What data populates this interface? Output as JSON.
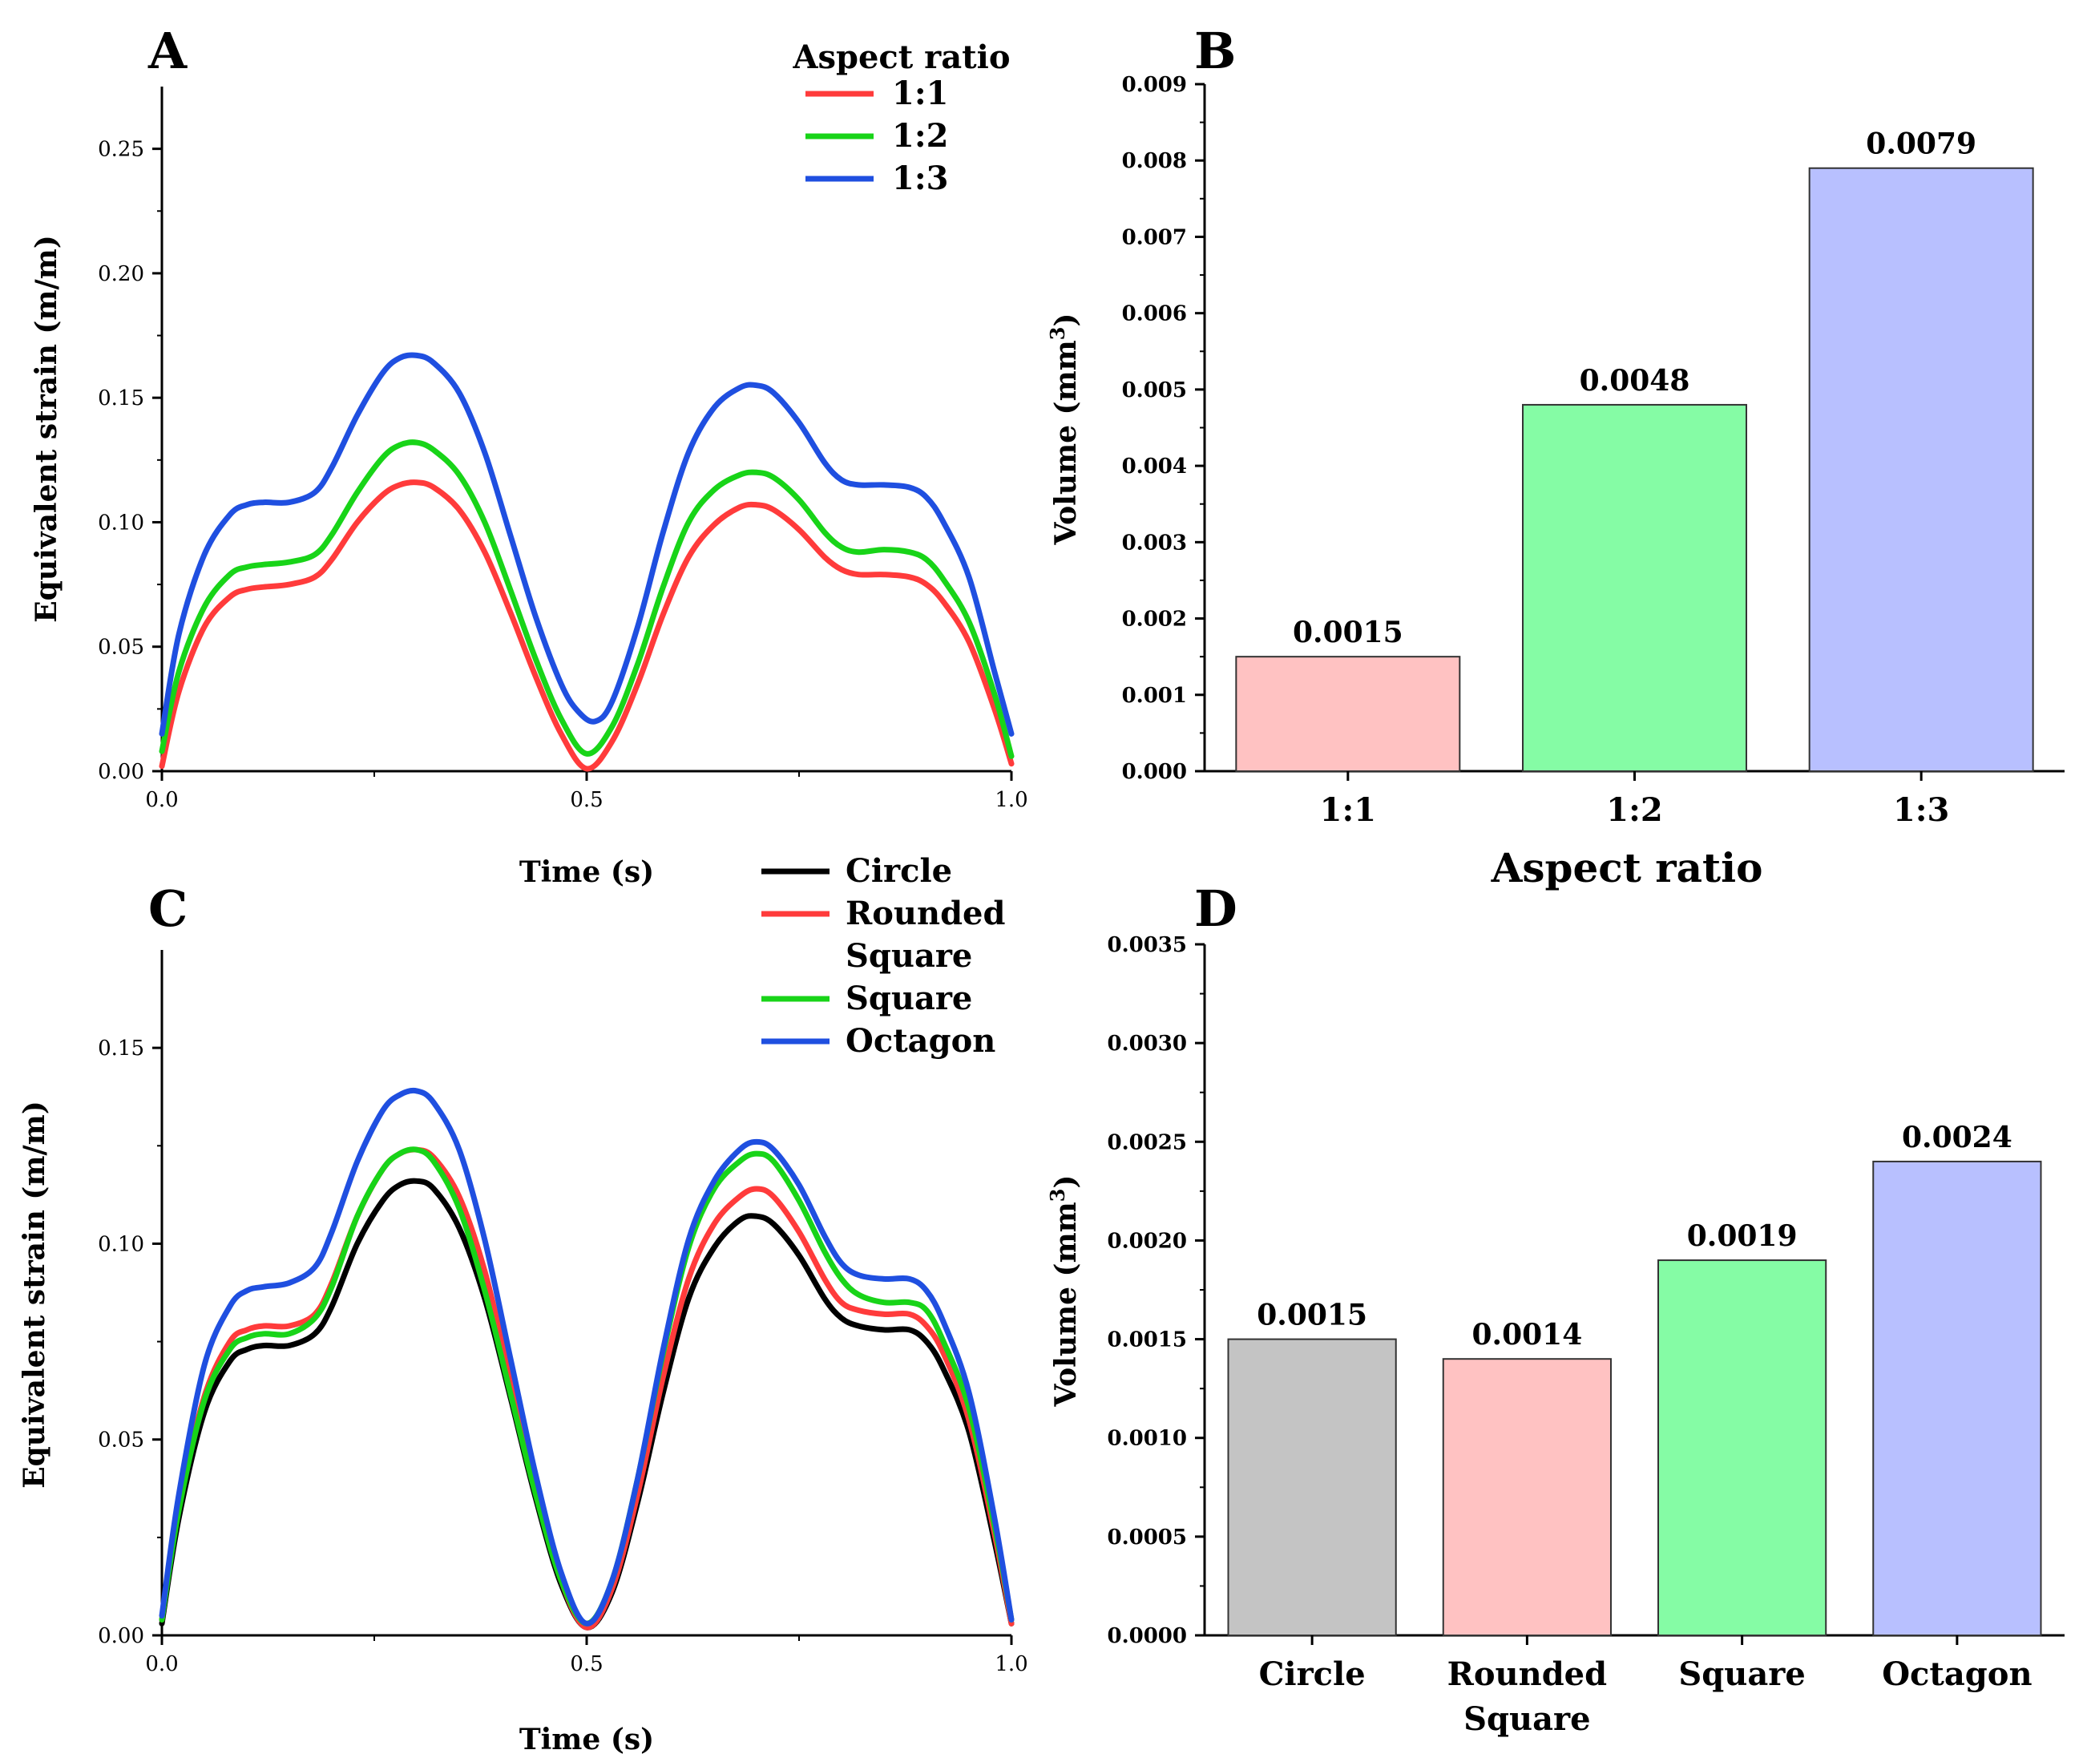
{
  "chart_data": [
    {
      "id": "A",
      "type": "line",
      "panel_label": "A",
      "xlabel": "Time (s)",
      "ylabel": "Equivalent strain (m/m)",
      "xlim": [
        0,
        1
      ],
      "ylim": [
        0,
        0.275
      ],
      "xticks": [
        0,
        0.5,
        1
      ],
      "xtick_labels": [
        "0.0",
        "0.5",
        "1.0"
      ],
      "yticks": [
        0,
        0.05,
        0.1,
        0.15,
        0.2,
        0.25
      ],
      "ytick_labels": [
        "0.00",
        "0.05",
        "0.10",
        "0.15",
        "0.20",
        "0.25"
      ],
      "legend_title": "Aspect ratio",
      "legend_position": "top-right",
      "series": [
        {
          "name": "1:1",
          "color": "#ff3b3b",
          "x": [
            0,
            0.02,
            0.05,
            0.08,
            0.1,
            0.12,
            0.15,
            0.18,
            0.2,
            0.23,
            0.26,
            0.28,
            0.3,
            0.32,
            0.35,
            0.38,
            0.41,
            0.44,
            0.47,
            0.5,
            0.53,
            0.56,
            0.59,
            0.62,
            0.65,
            0.68,
            0.7,
            0.72,
            0.75,
            0.78,
            0.8,
            0.82,
            0.85,
            0.88,
            0.9,
            0.92,
            0.95,
            0.98,
            1.0
          ],
          "y": [
            0.002,
            0.032,
            0.058,
            0.07,
            0.073,
            0.074,
            0.075,
            0.078,
            0.085,
            0.1,
            0.111,
            0.115,
            0.116,
            0.114,
            0.105,
            0.088,
            0.064,
            0.038,
            0.015,
            0.001,
            0.012,
            0.035,
            0.063,
            0.086,
            0.099,
            0.106,
            0.107,
            0.105,
            0.097,
            0.086,
            0.081,
            0.079,
            0.079,
            0.078,
            0.075,
            0.068,
            0.052,
            0.025,
            0.003
          ]
        },
        {
          "name": "1:2",
          "color": "#18d418",
          "x": [
            0,
            0.02,
            0.05,
            0.08,
            0.1,
            0.12,
            0.15,
            0.18,
            0.2,
            0.23,
            0.26,
            0.28,
            0.3,
            0.32,
            0.35,
            0.38,
            0.41,
            0.44,
            0.47,
            0.5,
            0.53,
            0.56,
            0.59,
            0.62,
            0.65,
            0.68,
            0.7,
            0.72,
            0.75,
            0.78,
            0.8,
            0.82,
            0.85,
            0.88,
            0.9,
            0.92,
            0.95,
            0.98,
            1.0
          ],
          "y": [
            0.008,
            0.04,
            0.066,
            0.079,
            0.082,
            0.083,
            0.084,
            0.087,
            0.095,
            0.112,
            0.126,
            0.131,
            0.132,
            0.129,
            0.119,
            0.1,
            0.073,
            0.045,
            0.021,
            0.007,
            0.018,
            0.043,
            0.074,
            0.1,
            0.113,
            0.119,
            0.12,
            0.118,
            0.109,
            0.096,
            0.09,
            0.088,
            0.089,
            0.088,
            0.085,
            0.077,
            0.06,
            0.031,
            0.006
          ]
        },
        {
          "name": "1:3",
          "color": "#1f4fe0",
          "x": [
            0,
            0.02,
            0.05,
            0.08,
            0.1,
            0.12,
            0.15,
            0.18,
            0.2,
            0.23,
            0.26,
            0.28,
            0.3,
            0.32,
            0.35,
            0.38,
            0.41,
            0.44,
            0.47,
            0.49,
            0.51,
            0.53,
            0.56,
            0.59,
            0.62,
            0.65,
            0.68,
            0.7,
            0.72,
            0.75,
            0.78,
            0.8,
            0.82,
            0.85,
            0.88,
            0.9,
            0.92,
            0.95,
            0.98,
            1.0
          ],
          "y": [
            0.015,
            0.055,
            0.087,
            0.103,
            0.107,
            0.108,
            0.108,
            0.112,
            0.122,
            0.143,
            0.16,
            0.166,
            0.167,
            0.164,
            0.152,
            0.128,
            0.095,
            0.062,
            0.035,
            0.024,
            0.02,
            0.028,
            0.058,
            0.096,
            0.128,
            0.146,
            0.154,
            0.155,
            0.152,
            0.14,
            0.124,
            0.117,
            0.115,
            0.115,
            0.114,
            0.11,
            0.1,
            0.078,
            0.04,
            0.015
          ]
        }
      ]
    },
    {
      "id": "B",
      "type": "bar",
      "panel_label": "B",
      "xlabel": "Aspect ratio",
      "ylabel": "Volume (mm",
      "ylabel_sup": "3",
      "ylabel_end": ")",
      "ylim": [
        0,
        0.009
      ],
      "yticks": [
        0,
        0.001,
        0.002,
        0.003,
        0.004,
        0.005,
        0.006,
        0.007,
        0.008,
        0.009
      ],
      "ytick_labels": [
        "0.000",
        "0.001",
        "0.002",
        "0.003",
        "0.004",
        "0.005",
        "0.006",
        "0.007",
        "0.008",
        "0.009"
      ],
      "categories": [
        "1:1",
        "1:2",
        "1:3"
      ],
      "values": [
        0.0015,
        0.0048,
        0.0079
      ],
      "value_labels": [
        "0.0015",
        "0.0048",
        "0.0079"
      ],
      "bar_colors": [
        "#ffc2c2",
        "#85fca5",
        "#b8c0ff"
      ]
    },
    {
      "id": "C",
      "type": "line",
      "panel_label": "C",
      "xlabel": "Time (s)",
      "ylabel": "Equivalent strain (m/m)",
      "xlim": [
        0,
        1
      ],
      "ylim": [
        0,
        0.175
      ],
      "xticks": [
        0,
        0.5,
        1
      ],
      "xtick_labels": [
        "0.0",
        "0.5",
        "1.0"
      ],
      "yticks": [
        0,
        0.05,
        0.1,
        0.15
      ],
      "ytick_labels": [
        "0.00",
        "0.05",
        "0.10",
        "0.15"
      ],
      "legend_position": "top-right",
      "series": [
        {
          "name": "Circle",
          "color": "#000000",
          "x": [
            0,
            0.02,
            0.05,
            0.08,
            0.1,
            0.12,
            0.15,
            0.18,
            0.2,
            0.23,
            0.26,
            0.28,
            0.3,
            0.32,
            0.35,
            0.38,
            0.41,
            0.44,
            0.47,
            0.5,
            0.53,
            0.56,
            0.59,
            0.62,
            0.65,
            0.68,
            0.7,
            0.72,
            0.75,
            0.78,
            0.8,
            0.82,
            0.85,
            0.88,
            0.9,
            0.92,
            0.95,
            0.98,
            1.0
          ],
          "y": [
            0.003,
            0.03,
            0.057,
            0.07,
            0.073,
            0.074,
            0.074,
            0.077,
            0.084,
            0.1,
            0.111,
            0.115,
            0.116,
            0.114,
            0.104,
            0.086,
            0.061,
            0.035,
            0.013,
            0.002,
            0.011,
            0.034,
            0.062,
            0.086,
            0.099,
            0.106,
            0.107,
            0.105,
            0.097,
            0.086,
            0.081,
            0.079,
            0.078,
            0.078,
            0.075,
            0.068,
            0.052,
            0.024,
            0.003
          ]
        },
        {
          "name": "Rounded Square",
          "color": "#ff3b3b",
          "x": [
            0,
            0.02,
            0.05,
            0.08,
            0.1,
            0.12,
            0.15,
            0.18,
            0.2,
            0.23,
            0.26,
            0.28,
            0.3,
            0.32,
            0.35,
            0.38,
            0.41,
            0.44,
            0.47,
            0.5,
            0.53,
            0.56,
            0.59,
            0.62,
            0.65,
            0.68,
            0.7,
            0.72,
            0.75,
            0.78,
            0.8,
            0.82,
            0.85,
            0.88,
            0.9,
            0.92,
            0.95,
            0.98,
            1.0
          ],
          "y": [
            0.004,
            0.033,
            0.061,
            0.075,
            0.078,
            0.079,
            0.079,
            0.082,
            0.09,
            0.107,
            0.119,
            0.123,
            0.124,
            0.122,
            0.112,
            0.093,
            0.066,
            0.038,
            0.014,
            0.002,
            0.012,
            0.036,
            0.066,
            0.091,
            0.105,
            0.112,
            0.114,
            0.112,
            0.103,
            0.091,
            0.085,
            0.083,
            0.082,
            0.082,
            0.079,
            0.072,
            0.055,
            0.026,
            0.003
          ]
        },
        {
          "name": "Square",
          "color": "#18d418",
          "x": [
            0,
            0.02,
            0.05,
            0.08,
            0.1,
            0.12,
            0.15,
            0.18,
            0.2,
            0.23,
            0.26,
            0.28,
            0.3,
            0.32,
            0.35,
            0.38,
            0.41,
            0.44,
            0.47,
            0.5,
            0.53,
            0.56,
            0.59,
            0.62,
            0.65,
            0.68,
            0.7,
            0.72,
            0.75,
            0.78,
            0.8,
            0.82,
            0.85,
            0.88,
            0.9,
            0.92,
            0.95,
            0.98,
            1.0
          ],
          "y": [
            0.004,
            0.032,
            0.06,
            0.073,
            0.076,
            0.077,
            0.077,
            0.081,
            0.089,
            0.107,
            0.119,
            0.123,
            0.124,
            0.121,
            0.109,
            0.088,
            0.062,
            0.036,
            0.014,
            0.003,
            0.014,
            0.04,
            0.072,
            0.099,
            0.114,
            0.121,
            0.123,
            0.121,
            0.111,
            0.098,
            0.091,
            0.087,
            0.085,
            0.085,
            0.083,
            0.075,
            0.058,
            0.028,
            0.004
          ]
        },
        {
          "name": "Octagon",
          "color": "#1f4fe0",
          "x": [
            0,
            0.02,
            0.05,
            0.08,
            0.1,
            0.12,
            0.15,
            0.18,
            0.2,
            0.23,
            0.26,
            0.28,
            0.3,
            0.32,
            0.35,
            0.38,
            0.41,
            0.44,
            0.47,
            0.5,
            0.53,
            0.56,
            0.59,
            0.62,
            0.65,
            0.68,
            0.7,
            0.72,
            0.75,
            0.78,
            0.8,
            0.82,
            0.85,
            0.88,
            0.9,
            0.92,
            0.95,
            0.98,
            1.0
          ],
          "y": [
            0.005,
            0.036,
            0.069,
            0.084,
            0.088,
            0.089,
            0.09,
            0.094,
            0.103,
            0.121,
            0.134,
            0.138,
            0.139,
            0.136,
            0.124,
            0.101,
            0.071,
            0.041,
            0.016,
            0.003,
            0.014,
            0.04,
            0.073,
            0.101,
            0.116,
            0.124,
            0.126,
            0.124,
            0.115,
            0.102,
            0.095,
            0.092,
            0.091,
            0.091,
            0.088,
            0.08,
            0.062,
            0.03,
            0.004
          ]
        }
      ]
    },
    {
      "id": "D",
      "type": "bar",
      "panel_label": "D",
      "ylabel": "Volume (mm",
      "ylabel_sup": "3",
      "ylabel_end": ")",
      "ylim": [
        0,
        0.0035
      ],
      "yticks": [
        0,
        0.0005,
        0.001,
        0.0015,
        0.002,
        0.0025,
        0.003,
        0.0035
      ],
      "ytick_labels": [
        "0.0000",
        "0.0005",
        "0.0010",
        "0.0015",
        "0.0020",
        "0.0025",
        "0.0030",
        "0.0035"
      ],
      "categories": [
        "Circle",
        "Rounded Square",
        "Square",
        "Octagon"
      ],
      "category_lines": [
        [
          "Circle"
        ],
        [
          "Rounded",
          "Square"
        ],
        [
          "Square"
        ],
        [
          "Octagon"
        ]
      ],
      "values": [
        0.0015,
        0.0014,
        0.0019,
        0.0024
      ],
      "value_labels": [
        "0.0015",
        "0.0014",
        "0.0019",
        "0.0024"
      ],
      "bar_colors": [
        "#c4c4c4",
        "#ffc2c2",
        "#85fca5",
        "#b8c0ff"
      ]
    }
  ]
}
